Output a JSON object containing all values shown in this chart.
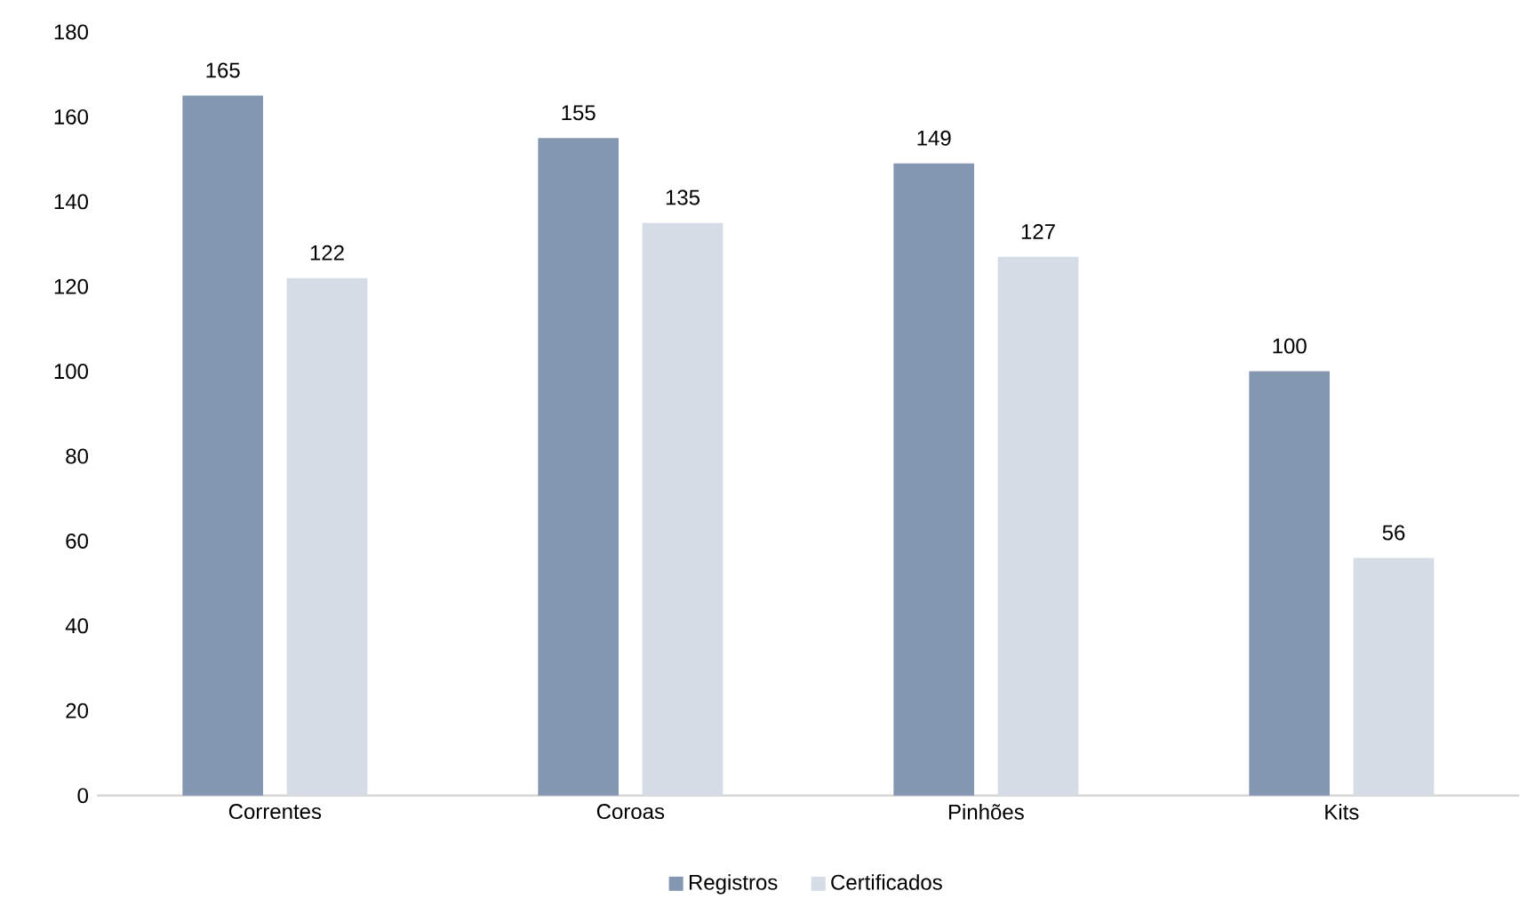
{
  "chart_data": {
    "type": "bar",
    "categories": [
      "Correntes",
      "Coroas",
      "Pinhões",
      "Kits"
    ],
    "series": [
      {
        "name": "Registros",
        "color": "#8497b0",
        "values": [
          165,
          155,
          149,
          100
        ]
      },
      {
        "name": "Certificados",
        "color": "#d6dce5",
        "values": [
          122,
          135,
          127,
          56
        ]
      }
    ],
    "ylim": [
      0,
      180
    ],
    "yticks": [
      0,
      20,
      40,
      60,
      80,
      100,
      120,
      140,
      160,
      180
    ],
    "data_labels": true,
    "legend": "bottom",
    "grid": false
  }
}
